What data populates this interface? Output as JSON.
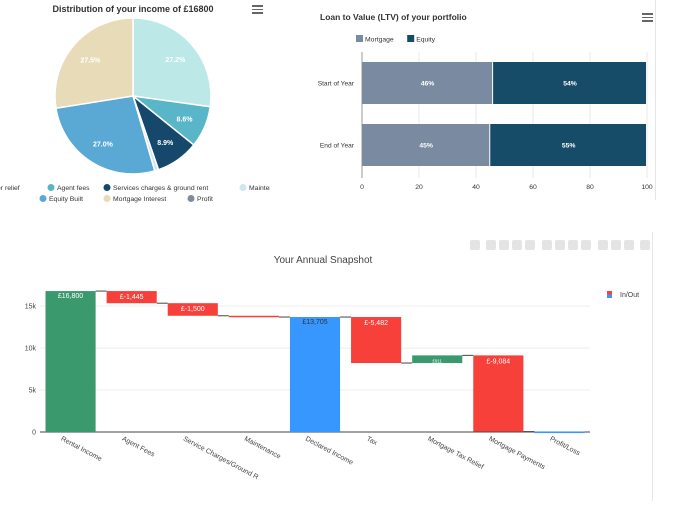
{
  "pie": {
    "chart_data": {
      "type": "pie",
      "title": "Distribution of your income of £16800",
      "slices": [
        {
          "name": "Tax after relief",
          "value": 27.2,
          "label": "27.2%",
          "color": "#bde8e8"
        },
        {
          "name": "Agent fees",
          "value": 8.6,
          "label": "8.6%",
          "color": "#59b6c9"
        },
        {
          "name": "Services charges & ground rent",
          "value": 8.9,
          "label": "8.9%",
          "color": "#15486a"
        },
        {
          "name": "Maintenance",
          "value": 0.8,
          "label": "",
          "color": "#cfe6f1"
        },
        {
          "name": "Equity Built",
          "value": 27.0,
          "label": "27.0%",
          "color": "#5aa8d4"
        },
        {
          "name": "Mortgage Interest",
          "value": 27.5,
          "label": "27.5%",
          "color": "#e8dcb8"
        },
        {
          "name": "Profit",
          "value": 0.0,
          "label": "",
          "color": "#7f8c9e"
        }
      ],
      "legend_position": "bottom"
    }
  },
  "ltv": {
    "chart_data": {
      "type": "bar",
      "orientation": "horizontal",
      "stacked": true,
      "title": "Loan to Value (LTV) of your portfolio",
      "categories": [
        "Start of Year",
        "End of Year"
      ],
      "series": [
        {
          "name": "Mortgage",
          "values": [
            46,
            45
          ],
          "labels": [
            "46%",
            "45%"
          ],
          "color": "#7a8aa0"
        },
        {
          "name": "Equity",
          "values": [
            54,
            55
          ],
          "labels": [
            "54%",
            "55%"
          ],
          "color": "#174c68"
        }
      ],
      "xlim": [
        0,
        100
      ],
      "xticks": [
        "0",
        "20",
        "40",
        "60",
        "80",
        "100"
      ],
      "legend_position": "top-left"
    }
  },
  "waterfall": {
    "chart_data": {
      "type": "bar",
      "subtype": "waterfall",
      "title": "Your Annual Snapshot",
      "categories": [
        "Rental Income",
        "Agent Fees",
        "Service Charges/Ground R",
        "Maintenance",
        "Declared Income",
        "Tax",
        "Mortgage Tax Relief",
        "Mortgage Payments",
        "Profit/Loss"
      ],
      "steps": [
        {
          "kind": "absolute",
          "value": 16800,
          "label": "£16,800",
          "color": "#3a9a6e"
        },
        {
          "kind": "relative",
          "value": -1445,
          "label": "£-1,445",
          "color": "#f7403a"
        },
        {
          "kind": "relative",
          "value": -1500,
          "label": "£-1,500",
          "color": "#f7403a"
        },
        {
          "kind": "relative",
          "value": -150,
          "label": "",
          "color": "#f7403a"
        },
        {
          "kind": "total",
          "value": 13705,
          "label": "£13,705",
          "color": "#3797ff"
        },
        {
          "kind": "relative",
          "value": -5482,
          "label": "£-5,482",
          "color": "#f7403a"
        },
        {
          "kind": "relative",
          "value": 911,
          "label": "£911",
          "color": "#3a9a6e"
        },
        {
          "kind": "relative",
          "value": -9084,
          "label": "£-9,084",
          "color": "#f7403a"
        },
        {
          "kind": "total",
          "value": 50,
          "label": "",
          "color": "#3797ff"
        }
      ],
      "ylim": [
        0,
        18000
      ],
      "yticks": [
        {
          "value": 0,
          "label": "0"
        },
        {
          "value": 5000,
          "label": "5k"
        },
        {
          "value": 10000,
          "label": "10k"
        },
        {
          "value": 15000,
          "label": "15k"
        }
      ],
      "legend_label": "In/Out",
      "legend_position": "top-right"
    }
  }
}
